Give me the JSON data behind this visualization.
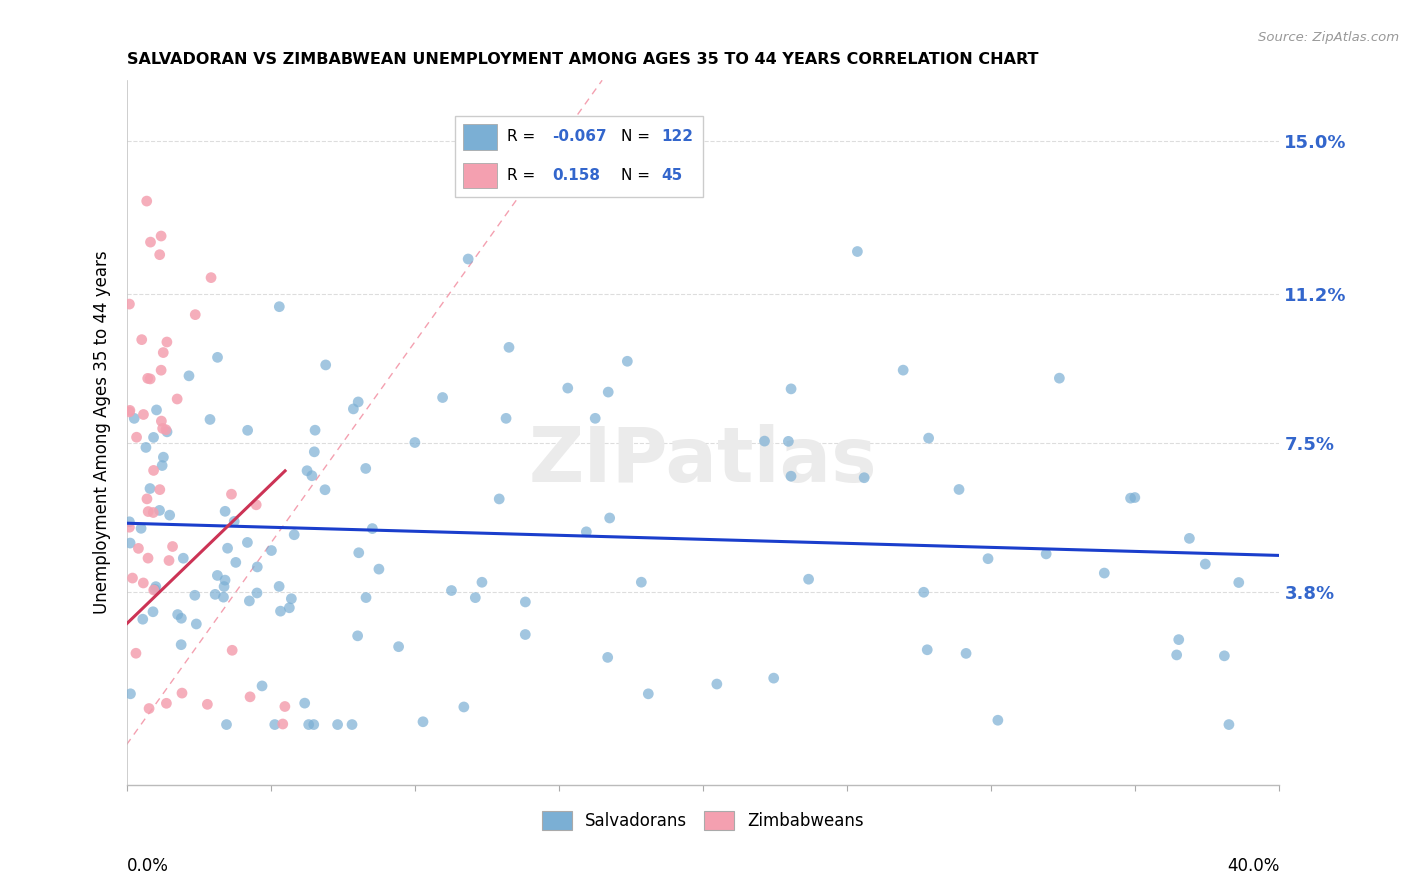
{
  "title": "SALVADORAN VS ZIMBABWEAN UNEMPLOYMENT AMONG AGES 35 TO 44 YEARS CORRELATION CHART",
  "source": "Source: ZipAtlas.com",
  "ylabel": "Unemployment Among Ages 35 to 44 years",
  "ytick_vals": [
    0.038,
    0.075,
    0.112,
    0.15
  ],
  "ytick_labels": [
    "3.8%",
    "7.5%",
    "11.2%",
    "15.0%"
  ],
  "xmin": 0.0,
  "xmax": 0.4,
  "ymin": -0.01,
  "ymax": 0.165,
  "salvadoran_R": -0.067,
  "salvadoran_N": 122,
  "zimbabwean_R": 0.158,
  "zimbabwean_N": 45,
  "blue_color": "#7BAFD4",
  "pink_color": "#F4A0B0",
  "trend_blue": "#1A3ECC",
  "trend_pink": "#CC3355",
  "diag_color": "#F4A0B0",
  "watermark": "ZIPatlas",
  "blue_trend_x0": 0.0,
  "blue_trend_y0": 0.055,
  "blue_trend_x1": 0.4,
  "blue_trend_y1": 0.047,
  "pink_trend_x0": 0.0,
  "pink_trend_y0": 0.03,
  "pink_trend_x1": 0.055,
  "pink_trend_y1": 0.068
}
